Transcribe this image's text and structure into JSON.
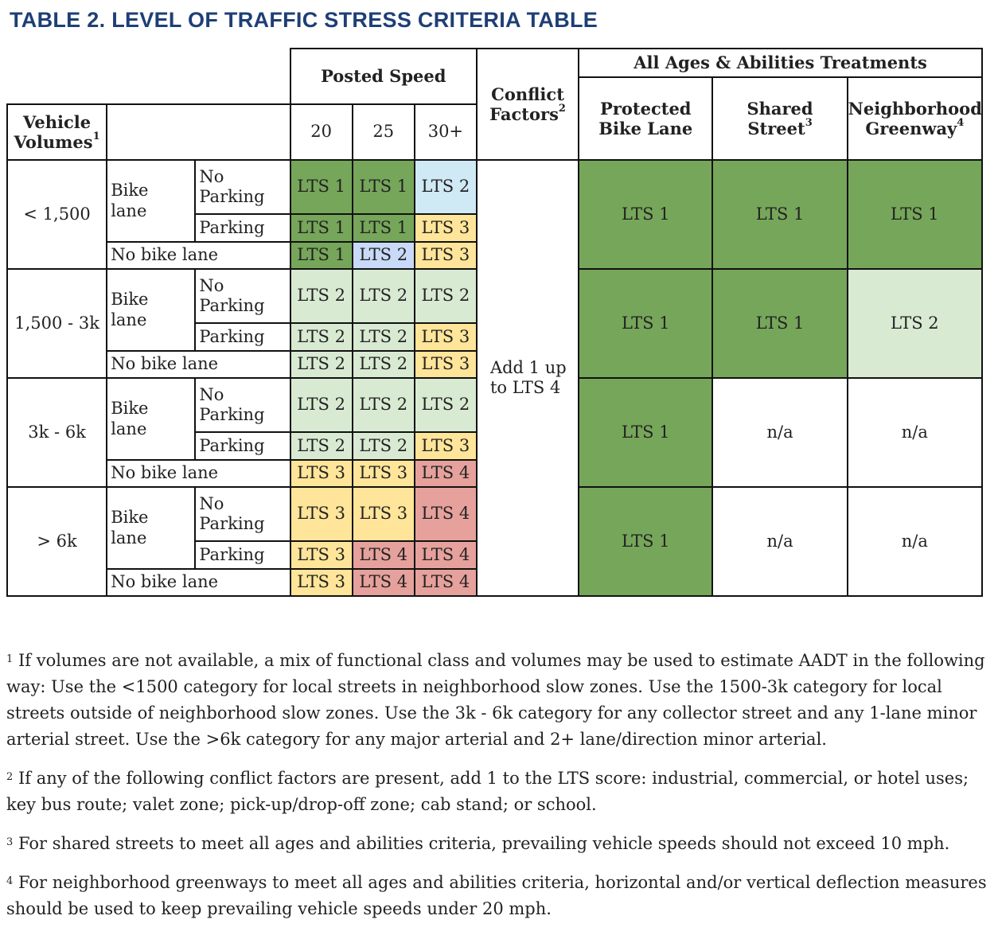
{
  "title": "TABLE 2. LEVEL OF TRAFFIC STRESS CRITERIA TABLE",
  "headers": {
    "posted_speed": "Posted Speed",
    "conflict": "Conflict",
    "conflict2": "Factors",
    "conflict_sup": "2",
    "aaa": "All Ages & Abilities Treatments",
    "vehicle": "Vehicle",
    "volumes": "Volumes",
    "volumes_sup": "1",
    "speeds": [
      "20",
      "25",
      "30+"
    ],
    "protected1": "Protected",
    "protected2": "Bike Lane",
    "shared1": "Shared",
    "shared2": "Street",
    "shared_sup": "3",
    "greenway1": "Neighborhood",
    "greenway2": "Greenway",
    "greenway_sup": "4"
  },
  "labels": {
    "bike": "Bike",
    "lane": "lane",
    "no": "No",
    "parking": "Parking",
    "no_bike_lane": "No bike lane"
  },
  "conflict_value": [
    "Add 1 up",
    "to LTS 4"
  ],
  "groups": [
    {
      "volume": "< 1,500",
      "rows": [
        [
          "LTS 1",
          "LTS 1",
          "LTS 2"
        ],
        [
          "LTS 1",
          "LTS 1",
          "LTS 3"
        ],
        [
          "LTS 1",
          "LTS 2",
          "LTS 3"
        ]
      ],
      "colors": [
        [
          "g1",
          "g1",
          "c2"
        ],
        [
          "g1",
          "g1",
          "y3"
        ],
        [
          "g1",
          "b2",
          "y3"
        ]
      ],
      "treatments": [
        "LTS 1",
        "LTS 1",
        "LTS 1"
      ],
      "tcolors": [
        "g1",
        "g1",
        "g1"
      ]
    },
    {
      "volume": "1,500 - 3k",
      "rows": [
        [
          "LTS 2",
          "LTS 2",
          "LTS 2"
        ],
        [
          "LTS 2",
          "LTS 2",
          "LTS 3"
        ],
        [
          "LTS 2",
          "LTS 2",
          "LTS 3"
        ]
      ],
      "colors": [
        [
          "g2",
          "g2",
          "g2"
        ],
        [
          "g2",
          "g2",
          "y3"
        ],
        [
          "g2",
          "g2",
          "y3"
        ]
      ],
      "treatments": [
        "LTS 1",
        "LTS 1",
        "LTS 2"
      ],
      "tcolors": [
        "g1",
        "g1",
        "g2"
      ]
    },
    {
      "volume": "3k - 6k",
      "rows": [
        [
          "LTS 2",
          "LTS 2",
          "LTS 2"
        ],
        [
          "LTS 2",
          "LTS 2",
          "LTS 3"
        ],
        [
          "LTS 3",
          "LTS 3",
          "LTS 4"
        ]
      ],
      "colors": [
        [
          "g2",
          "g2",
          "g2"
        ],
        [
          "g2",
          "g2",
          "y3"
        ],
        [
          "y3",
          "y3",
          "r4"
        ]
      ],
      "treatments": [
        "LTS 1",
        "n/a",
        "n/a"
      ],
      "tcolors": [
        "g1",
        "white",
        "white"
      ]
    },
    {
      "volume": "> 6k",
      "rows": [
        [
          "LTS 3",
          "LTS 3",
          "LTS 4"
        ],
        [
          "LTS 3",
          "LTS 4",
          "LTS 4"
        ],
        [
          "LTS 3",
          "LTS 4",
          "LTS 4"
        ]
      ],
      "colors": [
        [
          "y3",
          "y3",
          "r4"
        ],
        [
          "y3",
          "r4",
          "r4"
        ],
        [
          "y3",
          "r4",
          "r4"
        ]
      ],
      "treatments": [
        "LTS 1",
        "n/a",
        "n/a"
      ],
      "tcolors": [
        "g1",
        "white",
        "white"
      ]
    }
  ],
  "notes": [
    {
      "sup": "1",
      "text": "If volumes are not available, a mix of functional class and volumes may be used to estimate AADT in the following way: Use the <1500 category for local streets in neighborhood slow zones. Use the 1500-3k category for local streets outside of neighborhood slow zones. Use the 3k - 6k category for any collector street and any 1-lane minor arterial street. Use the >6k category for any major arterial and 2+ lane/direction minor arterial."
    },
    {
      "sup": "2",
      "text": "If any of the following conflict factors are present, add 1 to the LTS score: industrial, commercial, or hotel uses; key bus route; valet zone; pick-up/drop-off zone; cab stand; or school."
    },
    {
      "sup": "3",
      "text": "For shared streets to meet all ages and abilities criteria, prevailing vehicle speeds should not exceed 10 mph."
    },
    {
      "sup": "4",
      "text": "For neighborhood greenways to meet all ages and abilities criteria, horizontal and/or vertical deflection measures should be used to keep prevailing vehicle speeds under 20 mph."
    }
  ],
  "colors": {
    "title": "#1e3f76",
    "lts1_dark_green": "#76a65a",
    "lts2_light_green": "#d9ead3",
    "lts3_yellow": "#ffe599",
    "lts4_red": "#e6a19c",
    "lts2_light_cyan": "#cfe9f5",
    "lts2_light_blue": "#c9daf8"
  }
}
